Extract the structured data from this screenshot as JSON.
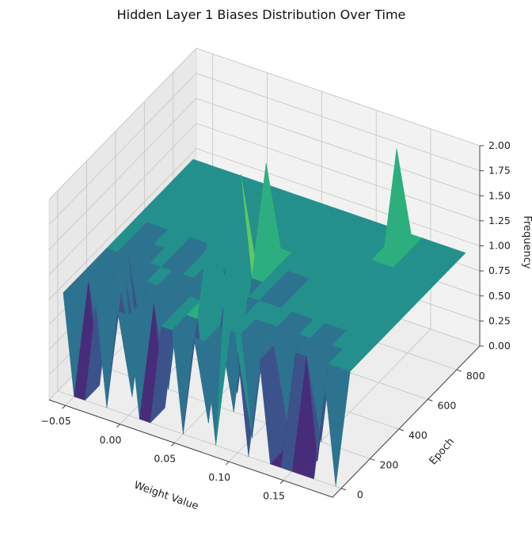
{
  "chart_data": {
    "type": "surface3d",
    "title": "Hidden Layer 1 Biases Distribution Over Time",
    "xlabel": "Weight Value",
    "ylabel": "Epoch",
    "zlabel": "Frequency",
    "x_ticks": [
      "−0.05",
      "0.00",
      "0.05",
      "0.10",
      "0.15"
    ],
    "y_ticks": [
      "0",
      "200",
      "400",
      "600",
      "800"
    ],
    "z_ticks": [
      "0.00",
      "0.25",
      "0.50",
      "0.75",
      "1.00",
      "1.25",
      "1.50",
      "1.75",
      "2.00"
    ],
    "xlim": [
      -0.065,
      0.195
    ],
    "ylim": [
      -60,
      960
    ],
    "zlim": [
      0,
      2
    ],
    "grid": true,
    "colormap": "viridis",
    "epochs": [
      0,
      100,
      200,
      300,
      400,
      500,
      600,
      700,
      800,
      900
    ],
    "bin_centers": [
      -0.06,
      -0.05,
      -0.04,
      -0.03,
      -0.02,
      -0.01,
      0.0,
      0.01,
      0.02,
      0.03,
      0.04,
      0.05,
      0.06,
      0.07,
      0.08,
      0.09,
      0.1,
      0.11,
      0.12,
      0.13,
      0.14,
      0.15,
      0.16,
      0.17,
      0.18,
      0.19
    ],
    "frequency": [
      [
        1,
        0,
        0,
        1,
        0,
        1,
        1,
        0,
        0,
        1,
        1,
        0,
        1,
        1,
        0,
        2,
        1,
        0,
        1,
        0,
        0,
        0,
        0,
        0,
        1,
        0
      ],
      [
        1,
        1,
        0,
        1,
        1,
        0,
        1,
        1,
        0,
        1,
        1,
        1,
        0,
        1,
        1,
        1,
        0,
        1,
        1,
        0,
        1,
        1,
        0,
        1,
        1,
        1
      ],
      [
        1,
        0,
        1,
        1,
        0,
        1,
        1,
        0,
        1,
        1,
        1,
        2,
        1,
        0,
        1,
        1,
        1,
        1,
        0,
        1,
        1,
        0,
        1,
        1,
        1,
        1
      ],
      [
        1,
        1,
        1,
        0,
        1,
        1,
        1,
        1,
        1,
        0,
        1,
        1,
        0,
        1,
        1,
        1,
        1,
        1,
        1,
        1,
        1,
        1,
        1,
        1,
        1,
        1
      ],
      [
        1,
        1,
        0,
        1,
        1,
        1,
        0,
        1,
        1,
        1,
        1,
        2,
        1,
        1,
        1,
        0,
        1,
        1,
        1,
        1,
        1,
        1,
        1,
        1,
        1,
        1
      ],
      [
        1,
        1,
        1,
        1,
        1,
        1,
        1,
        1,
        1,
        1,
        1,
        1,
        2,
        1,
        1,
        1,
        1,
        1,
        1,
        1,
        1,
        1,
        1,
        1,
        1,
        1
      ],
      [
        1,
        1,
        1,
        1,
        1,
        1,
        1,
        1,
        1,
        1,
        1,
        1,
        1,
        1,
        1,
        1,
        1,
        1,
        1,
        1,
        1,
        1,
        1,
        1,
        1,
        1
      ],
      [
        1,
        1,
        1,
        1,
        1,
        1,
        1,
        1,
        1,
        1,
        1,
        1,
        1,
        1,
        1,
        1,
        1,
        1,
        1,
        1,
        1,
        1,
        1,
        1,
        1,
        1
      ],
      [
        1,
        1,
        1,
        1,
        1,
        1,
        1,
        1,
        1,
        1,
        1,
        1,
        1,
        1,
        1,
        1,
        1,
        1,
        1,
        1,
        2,
        1,
        1,
        1,
        1,
        1
      ],
      [
        1,
        1,
        1,
        1,
        1,
        1,
        1,
        1,
        1,
        1,
        1,
        1,
        1,
        1,
        1,
        1,
        1,
        1,
        1,
        1,
        1,
        1,
        1,
        1,
        1,
        1
      ]
    ]
  }
}
